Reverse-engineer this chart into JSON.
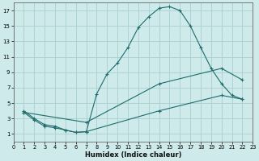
{
  "xlabel": "Humidex (Indice chaleur)",
  "bg_color": "#ceeaea",
  "grid_color": "#aacfcf",
  "line_color": "#1e6b6b",
  "series": [
    {
      "x": [
        1,
        2,
        3,
        4,
        5,
        6,
        7,
        8,
        9,
        10,
        11,
        12,
        13,
        14,
        15,
        16,
        17,
        18,
        19,
        20,
        21,
        22
      ],
      "y": [
        4,
        3,
        2.2,
        2.0,
        1.5,
        1.2,
        1.3,
        6.2,
        8.8,
        10.2,
        12.2,
        14.8,
        16.2,
        17.3,
        17.5,
        17.0,
        15.0,
        12.2,
        9.5,
        7.5,
        6.0,
        5.5
      ]
    },
    {
      "x": [
        1,
        7,
        14,
        20,
        22
      ],
      "y": [
        3.8,
        2.5,
        7.5,
        9.5,
        8.0
      ]
    },
    {
      "x": [
        1,
        2,
        3,
        4,
        5,
        6,
        7,
        14,
        20,
        22
      ],
      "y": [
        3.8,
        2.8,
        2.0,
        1.8,
        1.5,
        1.2,
        1.3,
        4.0,
        6.0,
        5.5
      ]
    }
  ],
  "xlim": [
    0,
    23
  ],
  "ylim": [
    0,
    18
  ],
  "xticks": [
    0,
    1,
    2,
    3,
    4,
    5,
    6,
    7,
    8,
    9,
    10,
    11,
    12,
    13,
    14,
    15,
    16,
    17,
    18,
    19,
    20,
    21,
    22,
    23
  ],
  "yticks": [
    1,
    3,
    5,
    7,
    9,
    11,
    13,
    15,
    17
  ]
}
